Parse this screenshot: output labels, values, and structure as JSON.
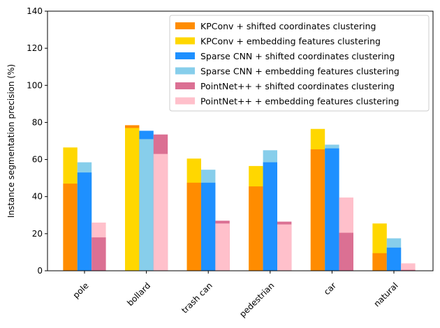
{
  "chart_data": {
    "type": "bar",
    "ylabel": "Instance segmentation precision (%)",
    "xlabel": "",
    "ylim": [
      0,
      140
    ],
    "yticks": [
      0,
      20,
      40,
      60,
      80,
      100,
      120,
      140
    ],
    "categories": [
      "pole",
      "bollard",
      "trash can",
      "pedestrian",
      "car",
      "natural"
    ],
    "legend_position": "top-right",
    "groups": [
      {
        "slot": 0,
        "series": [
          {
            "name": "KPConv + shifted coordinates clustering",
            "color": "#ff8c00",
            "values": [
              47,
              78.5,
              47.5,
              45.5,
              65.5,
              9.5
            ]
          },
          {
            "name": "KPConv + embedding features clustering",
            "color": "#ffd700",
            "values": [
              66.5,
              77,
              60.5,
              56.5,
              76.5,
              25.5
            ]
          }
        ]
      },
      {
        "slot": 1,
        "series": [
          {
            "name": "Sparse CNN + shifted coordinates clustering",
            "color": "#1e90ff",
            "values": [
              53,
              75.5,
              47.5,
              58.5,
              66,
              12.5
            ]
          },
          {
            "name": "Sparse CNN + embedding features clustering",
            "color": "#87ceeb",
            "values": [
              58.5,
              71,
              54.5,
              65,
              68,
              17.5
            ]
          }
        ]
      },
      {
        "slot": 2,
        "series": [
          {
            "name": "PointNet++ + shifted coordinates clustering",
            "color": "#db7093",
            "values": [
              18,
              73.5,
              27,
              26.5,
              20.5,
              0.5
            ]
          },
          {
            "name": "PointNet++ + embedding features clustering",
            "color": "#ffc0cb",
            "values": [
              26,
              63,
              25.5,
              25,
              39.5,
              4
            ]
          }
        ]
      }
    ],
    "legend": [
      {
        "label": "KPConv + shifted coordinates clustering",
        "color": "#ff8c00"
      },
      {
        "label": "KPConv + embedding features clustering",
        "color": "#ffd700"
      },
      {
        "label": "Sparse CNN + shifted coordinates clustering",
        "color": "#1e90ff"
      },
      {
        "label": "Sparse CNN + embedding features clustering",
        "color": "#87ceeb"
      },
      {
        "label": "PointNet++ + shifted coordinates clustering",
        "color": "#db7093"
      },
      {
        "label": "PointNet++ + embedding features clustering",
        "color": "#ffc0cb"
      }
    ]
  }
}
